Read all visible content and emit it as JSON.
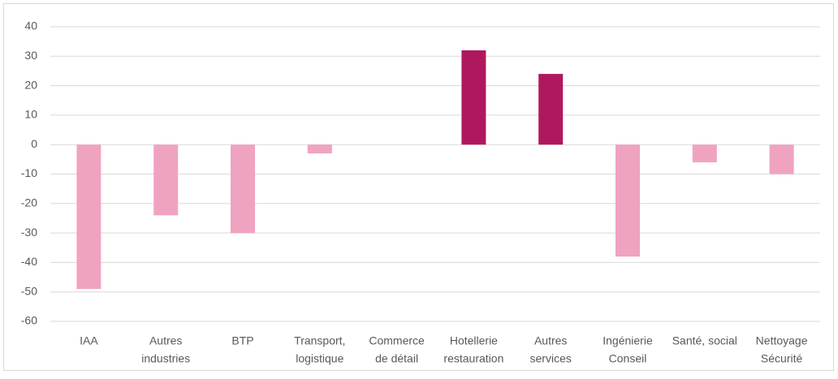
{
  "chart_data": {
    "type": "bar",
    "categories": [
      [
        "IAA"
      ],
      [
        "Autres",
        "industries"
      ],
      [
        "BTP"
      ],
      [
        "Transport,",
        "logistique"
      ],
      [
        "Commerce",
        "de détail"
      ],
      [
        "Hotellerie",
        "restauration"
      ],
      [
        "Autres",
        "services"
      ],
      [
        "Ingénierie",
        "Conseil"
      ],
      [
        "Santé, social"
      ],
      [
        "Nettoyage",
        "Sécurité"
      ]
    ],
    "values": [
      -49,
      -24,
      -30,
      -3,
      0,
      32,
      24,
      -38,
      -6,
      -10
    ],
    "colors": [
      "#f0a3c1",
      "#f0a3c1",
      "#f0a3c1",
      "#f0a3c1",
      "#f0a3c1",
      "#b0185e",
      "#b0185e",
      "#f0a3c1",
      "#f0a3c1",
      "#f0a3c1"
    ],
    "ylim": [
      -60,
      40
    ],
    "yticks": [
      -60,
      -50,
      -40,
      -30,
      -20,
      -10,
      0,
      10,
      20,
      30,
      40
    ],
    "grid": true
  }
}
